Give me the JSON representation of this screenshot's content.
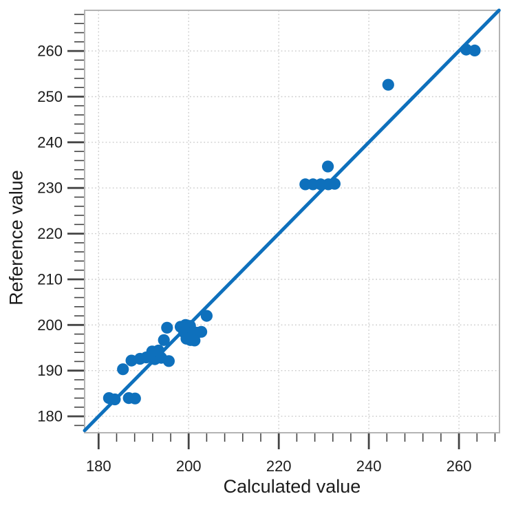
{
  "chart_data": {
    "type": "scatter",
    "title": "",
    "xlabel": "Calculated value",
    "ylabel": "Reference value",
    "xlim": [
      176.9,
      269.0
    ],
    "ylim": [
      176.4,
      268.9
    ],
    "x_major_ticks": [
      180,
      200,
      220,
      240,
      260
    ],
    "x_minor_tick_step": 4,
    "y_major_ticks": [
      180,
      190,
      200,
      210,
      220,
      230,
      240,
      250,
      260
    ],
    "y_minor_tick_step": 2,
    "grid": "dotted major gridlines, both axes",
    "legend": "none",
    "identity_line": {
      "type": "y=x",
      "x_start": 176.9,
      "x_end": 268.9
    },
    "series": [
      {
        "name": "calculated-vs-reference",
        "marker": "circle",
        "points": [
          [
            182.3,
            184.0
          ],
          [
            183.6,
            183.7
          ],
          [
            186.7,
            184.0
          ],
          [
            188.1,
            183.9
          ],
          [
            185.4,
            190.3
          ],
          [
            187.3,
            192.2
          ],
          [
            189.2,
            192.6
          ],
          [
            190.6,
            192.9
          ],
          [
            192.5,
            192.5
          ],
          [
            193.9,
            192.8
          ],
          [
            195.6,
            192.1
          ],
          [
            191.9,
            194.2
          ],
          [
            193.3,
            194.4
          ],
          [
            194.5,
            196.7
          ],
          [
            195.2,
            199.4
          ],
          [
            198.2,
            199.6
          ],
          [
            199.3,
            200.0
          ],
          [
            200.3,
            199.8
          ],
          [
            199.0,
            198.4
          ],
          [
            200.0,
            198.3
          ],
          [
            201.0,
            198.5
          ],
          [
            201.9,
            198.3
          ],
          [
            202.8,
            198.5
          ],
          [
            199.5,
            197.0
          ],
          [
            200.4,
            196.7
          ],
          [
            201.3,
            196.6
          ],
          [
            204.0,
            202.0
          ],
          [
            225.9,
            230.8
          ],
          [
            227.6,
            230.8
          ],
          [
            229.3,
            230.8
          ],
          [
            231.0,
            230.8
          ],
          [
            232.4,
            230.9
          ],
          [
            230.9,
            234.7
          ],
          [
            244.3,
            252.6
          ],
          [
            261.6,
            260.3
          ],
          [
            263.5,
            260.1
          ]
        ]
      }
    ],
    "colors": {
      "marker": "#0E70BC",
      "line": "#0E70BC",
      "grid": "#C9C9C9",
      "plot_border": "#B3B3B3",
      "tick": "#444444",
      "text": "#1C1C1C",
      "background": "#FFFFFF"
    }
  }
}
